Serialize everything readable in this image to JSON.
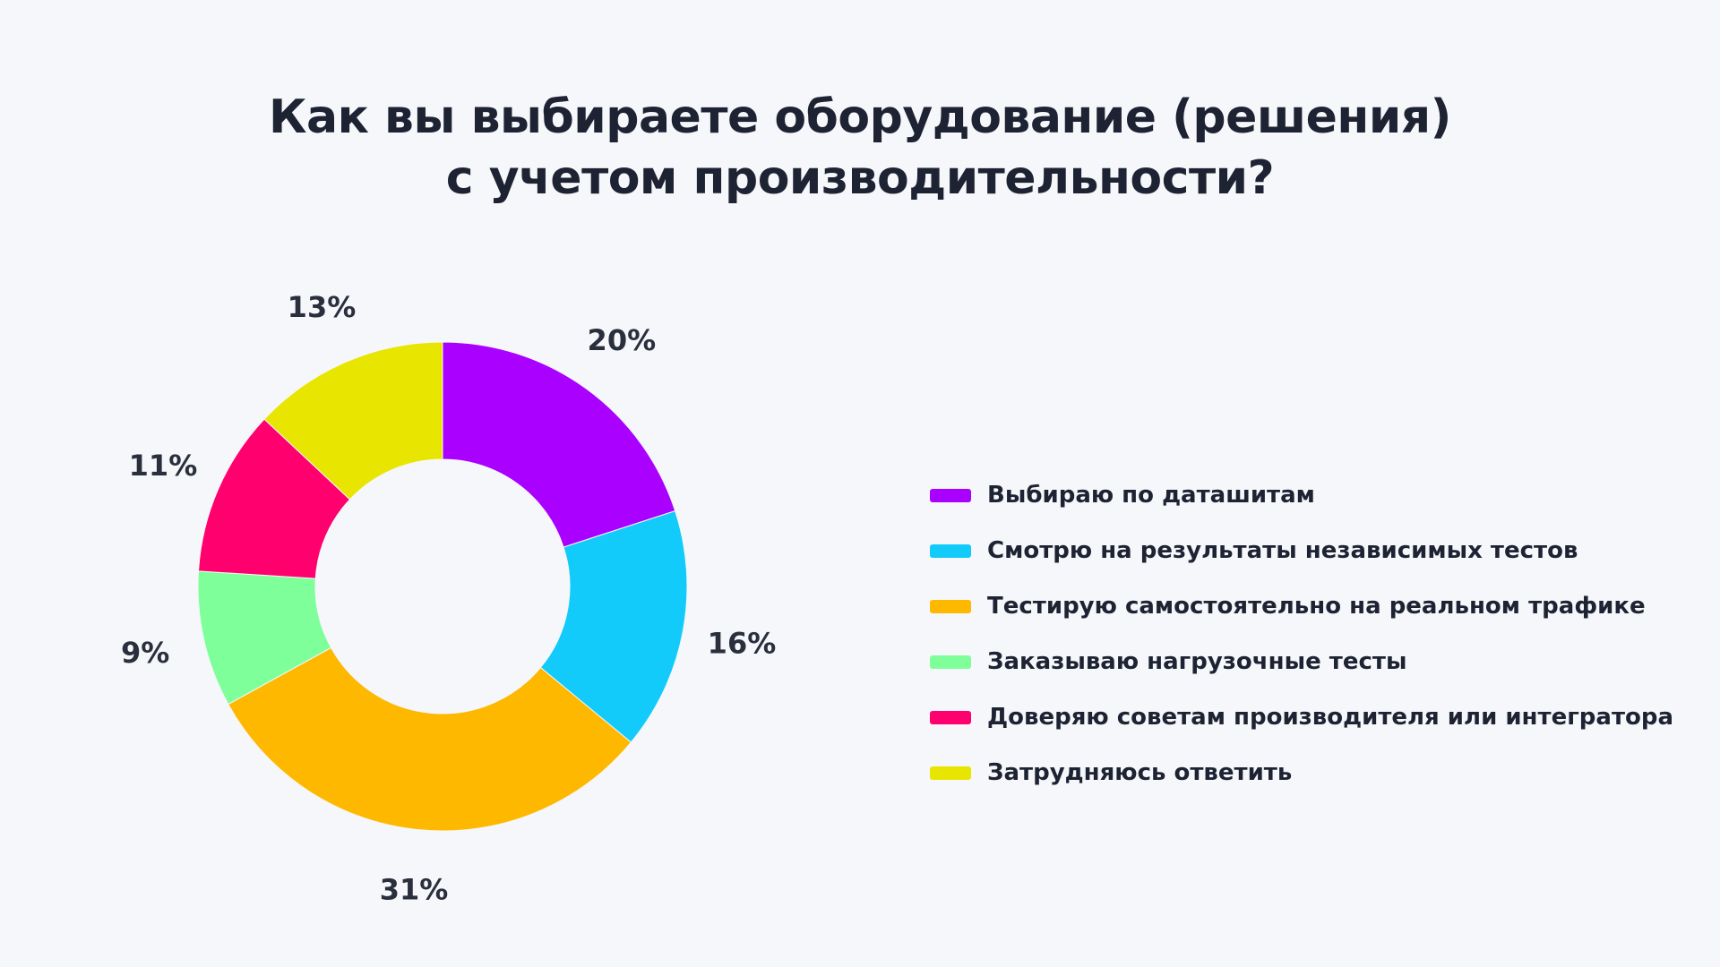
{
  "title": {
    "line1": "Как вы выбираете оборудование (решения)",
    "line2": "с учетом производительности?"
  },
  "chart_data": {
    "type": "pie",
    "variant": "donut",
    "start": "top",
    "direction": "clockwise",
    "legend_position": "right",
    "slices": [
      {
        "label": "Выбираю по даташитам",
        "value": 20,
        "value_label": "20%",
        "color": "#aa00ff"
      },
      {
        "label": "Смотрю на результаты независимых тестов",
        "value": 16,
        "value_label": "16%",
        "color": "#12cbfa"
      },
      {
        "label": "Тестирую самостоятельно на реальном трафике",
        "value": 31,
        "value_label": "31%",
        "color": "#ffb800"
      },
      {
        "label": "Заказываю нагрузочные тесты",
        "value": 9,
        "value_label": "9%",
        "color": "#7fff9a"
      },
      {
        "label": "Доверяю советам производителя или интегратора",
        "value": 11,
        "value_label": "11%",
        "color": "#ff006e"
      },
      {
        "label": "Затрудняюсь ответить",
        "value": 13,
        "value_label": "13%",
        "color": "#e8e600"
      }
    ]
  }
}
